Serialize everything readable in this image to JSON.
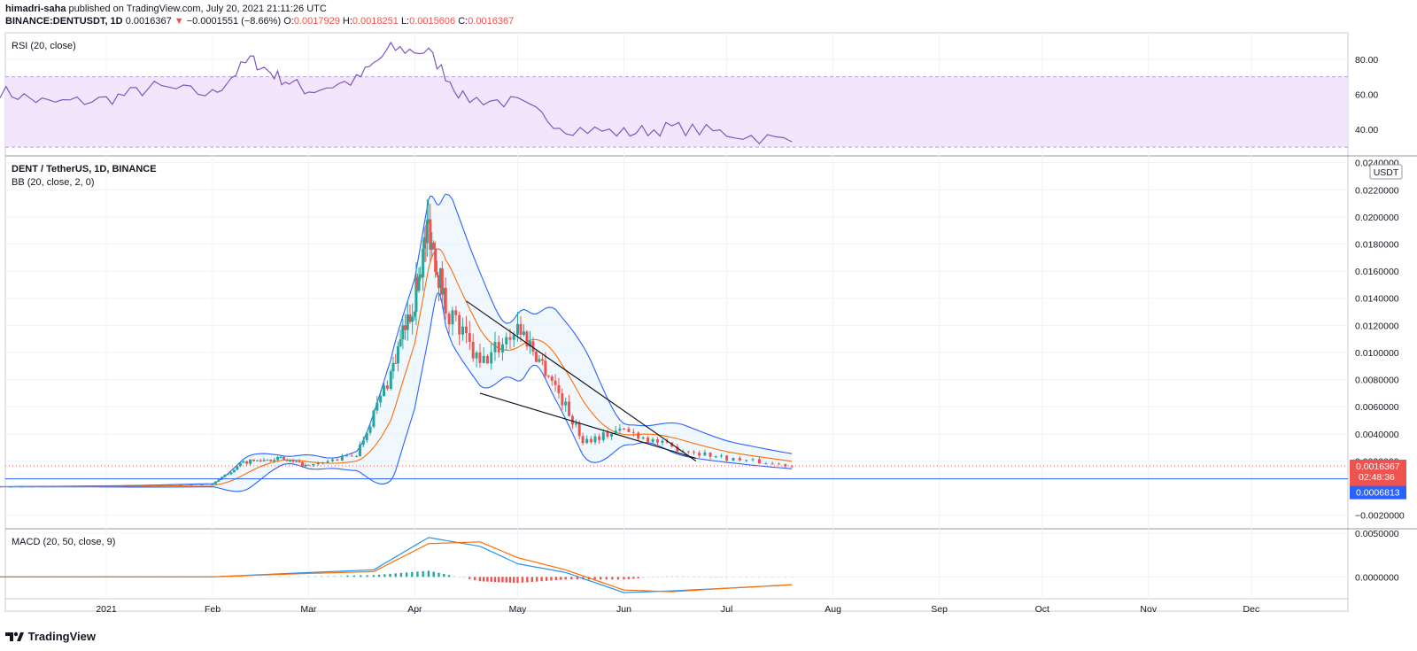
{
  "header": {
    "author": "himadri-saha",
    "published": " published on TradingView.com, July 20, 2021 21:11:26 UTC",
    "symbol": "BINANCE:DENTUSDT, 1D",
    "last": "0.0016367",
    "arrow": "▼",
    "change": "−0.0001551 (−8.66%)",
    "o_label": "O:",
    "o_val": "0.0017929",
    "h_label": "H:",
    "h_val": "0.0018251",
    "l_label": "L:",
    "l_val": "0.0015606",
    "c_label": "C:",
    "c_val": "0.0016367"
  },
  "rsi_pane": {
    "label": "RSI (20, close)",
    "ticks": [
      "80.00",
      "60.00",
      "40.00"
    ]
  },
  "price_pane": {
    "title": "DENT / TetherUS, 1D, BINANCE",
    "bb_label": "BB (20, close, 2, 0)",
    "currency": "USDT",
    "ticks": [
      "0.0240000",
      "0.0220000",
      "0.0200000",
      "0.0180000",
      "0.0160000",
      "0.0140000",
      "0.0120000",
      "0.0100000",
      "0.0080000",
      "0.0060000",
      "0.0040000",
      "0.0020000",
      "−0.0020000"
    ],
    "last_price": "0.0016367",
    "countdown": "02:48:36",
    "hline_price": "0.0006813"
  },
  "macd_pane": {
    "label": "MACD (20, 50, close, 9)",
    "ticks": [
      "0.0050000",
      "0.0000000"
    ]
  },
  "xaxis": [
    "2021",
    "Feb",
    "Mar",
    "Apr",
    "May",
    "Jun",
    "Jul",
    "Aug",
    "Sep",
    "Oct",
    "Nov",
    "Dec"
  ],
  "footer": {
    "logo_text": "TradingView"
  },
  "colors": {
    "up": "#26a69a",
    "down": "#ef5350",
    "bb": "#2962ff",
    "basis": "#ff6d00",
    "rsi": "#7e57c2",
    "rsi_band": "#f3e5fb",
    "macd": "#2196f3",
    "signal": "#ff6d00",
    "hline": "#2962ff"
  },
  "chart_data": [
    {
      "type": "line",
      "name_text": "RSI (20, close)",
      "x": [
        "2020-12-01",
        "2020-12-15",
        "2021-01-01",
        "2021-01-15",
        "2021-02-01",
        "2021-02-12",
        "2021-02-20",
        "2021-03-01",
        "2021-03-15",
        "2021-03-25",
        "2021-04-05",
        "2021-04-15",
        "2021-05-01",
        "2021-05-15",
        "2021-06-01",
        "2021-06-15",
        "2021-07-01",
        "2021-07-20"
      ],
      "values": [
        62,
        55,
        57,
        64,
        60,
        80,
        70,
        62,
        68,
        86,
        84,
        58,
        55,
        41,
        38,
        41,
        38,
        33
      ],
      "ylim": [
        25,
        95
      ],
      "bands": [
        30,
        70
      ]
    },
    {
      "type": "line",
      "title": "DENT / TetherUS, 1D, BINANCE",
      "x": [
        "2020-12-01",
        "2021-01-01",
        "2021-02-01",
        "2021-02-10",
        "2021-02-20",
        "2021-03-01",
        "2021-03-15",
        "2021-03-25",
        "2021-04-01",
        "2021-04-05",
        "2021-04-10",
        "2021-04-20",
        "2021-05-01",
        "2021-05-10",
        "2021-05-20",
        "2021-06-01",
        "2021-06-15",
        "2021-07-01",
        "2021-07-20"
      ],
      "series": [
        {
          "values": [
            0.0001,
            0.00015,
            0.0003,
            0.0019,
            0.0022,
            0.0016,
            0.0025,
            0.0085,
            0.014,
            0.0195,
            0.0135,
            0.009,
            0.012,
            0.0085,
            0.0035,
            0.0043,
            0.003,
            0.0022,
            0.0016367
          ]
        }
      ],
      "annotations": {
        "last_price": 0.0016367,
        "horizontal_line": 0.0006813
      },
      "ylim": [
        -0.003,
        0.0245
      ]
    },
    {
      "type": "line",
      "name_text": "MACD (20, 50, close, 9)",
      "x": [
        "2020-12-01",
        "2021-02-01",
        "2021-03-01",
        "2021-03-20",
        "2021-04-05",
        "2021-04-20",
        "2021-05-01",
        "2021-05-15",
        "2021-06-01",
        "2021-06-15",
        "2021-07-01",
        "2021-07-20"
      ],
      "series": [
        {
          "values": [
            0,
            0,
            0.0005,
            0.0008,
            0.0045,
            0.0035,
            0.0015,
            0.0005,
            -0.0018,
            -0.0016,
            -0.0013,
            -0.0009
          ]
        },
        {
          "values": [
            0,
            0,
            0.0004,
            0.0006,
            0.0038,
            0.004,
            0.0022,
            0.0008,
            -0.0015,
            -0.0017,
            -0.0013,
            -0.0009
          ]
        }
      ],
      "ylim": [
        -0.0025,
        0.0055
      ]
    }
  ]
}
